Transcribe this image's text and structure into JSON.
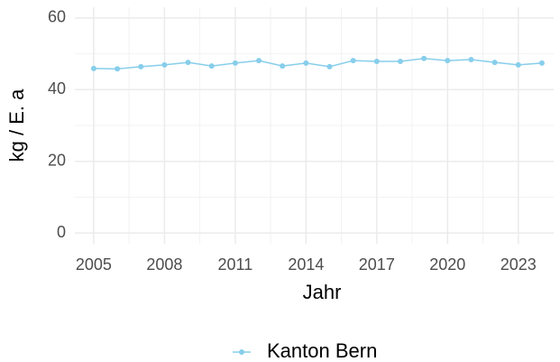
{
  "chart_data": {
    "type": "line",
    "x_label": "Jahr",
    "y_label": "kg / E. a",
    "x": [
      2005,
      2006,
      2007,
      2008,
      2009,
      2010,
      2011,
      2012,
      2013,
      2014,
      2015,
      2016,
      2017,
      2018,
      2019,
      2020,
      2021,
      2022,
      2023,
      2024
    ],
    "series": [
      {
        "name": "Kanton Bern",
        "color": "#87ceeb",
        "values": [
          45.9,
          45.8,
          46.4,
          46.9,
          47.6,
          46.6,
          47.4,
          48.1,
          46.6,
          47.4,
          46.4,
          48.1,
          47.9,
          47.9,
          48.7,
          48.1,
          48.4,
          47.6,
          46.9,
          47.4
        ]
      }
    ],
    "xlim": [
      2004.2,
      2024.5
    ],
    "xticks": [
      2005,
      2008,
      2011,
      2014,
      2017,
      2020,
      2023
    ],
    "xminor": [
      2006.5,
      2009.5,
      2012.5,
      2015.5,
      2018.5,
      2021.5
    ],
    "ylim": [
      -3,
      63
    ],
    "yticks": [
      0,
      20,
      40,
      60
    ],
    "yminor": [
      10,
      30,
      50
    ],
    "grid": true,
    "legend": "bottom"
  }
}
